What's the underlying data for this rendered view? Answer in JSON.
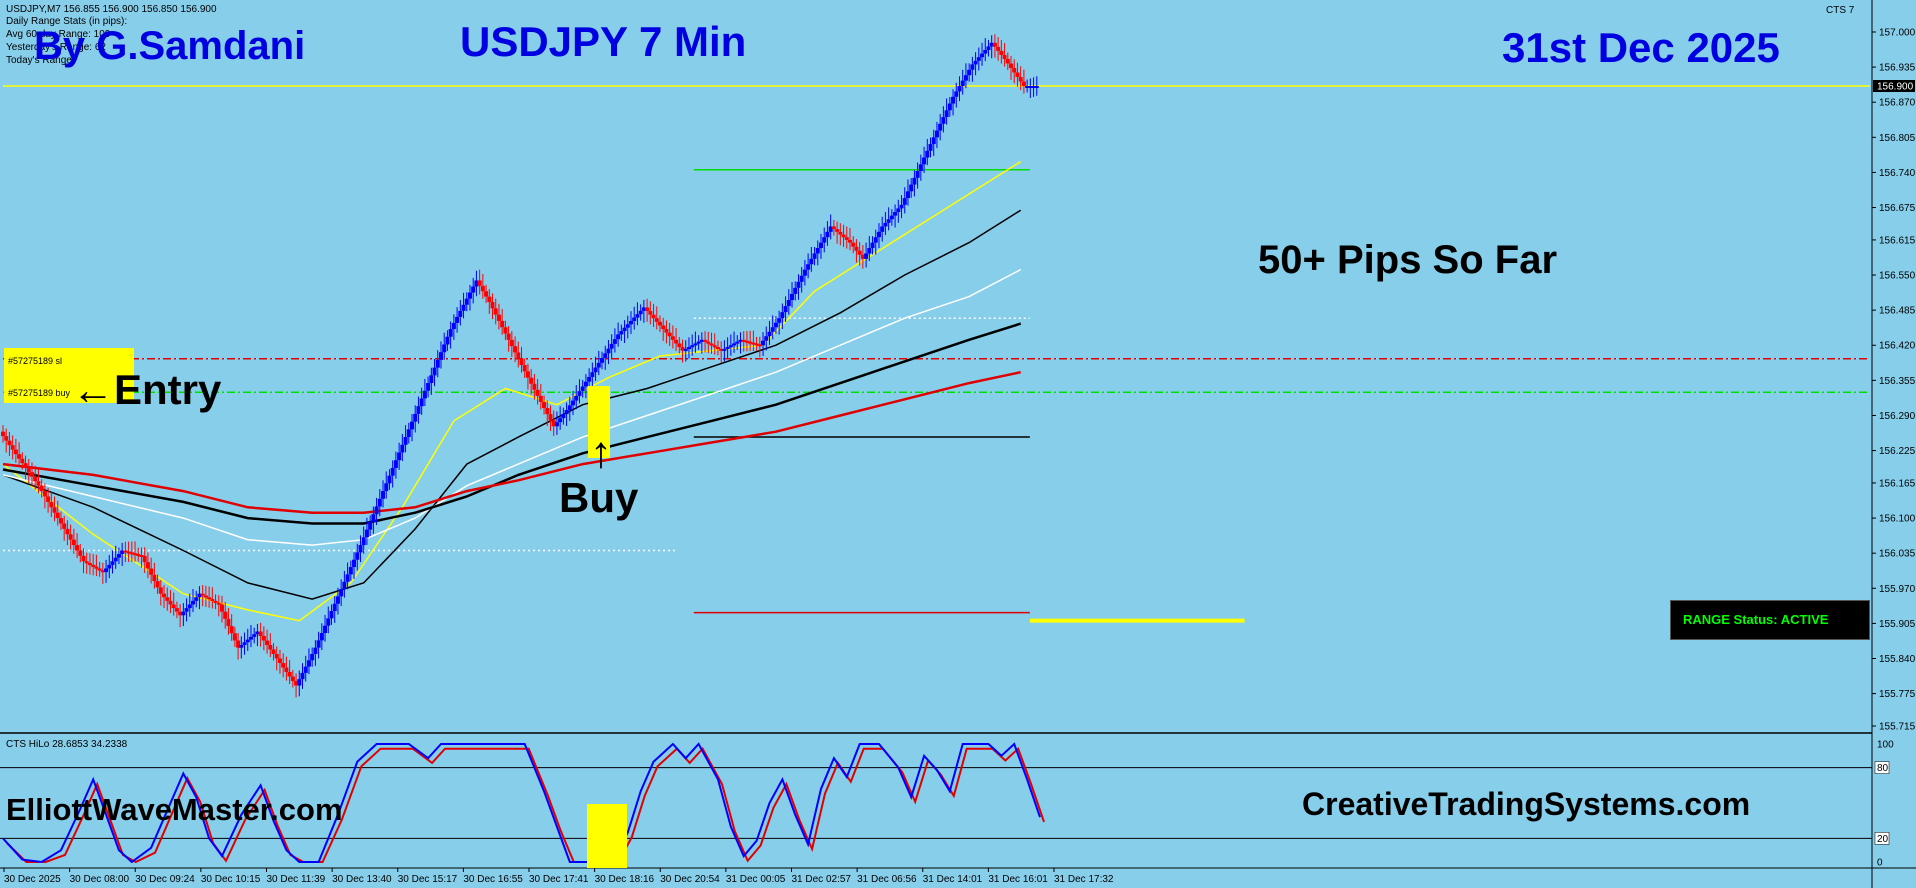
{
  "header": {
    "symbol_line": "USDJPY,M7  156.855 156.900 156.850 156.900",
    "indicator_line_1": "Daily Range Stats (in pips):",
    "indicator_line_2": "Avg 60 day Range: 109",
    "indicator_line_3": "Yesterday's Range: 62",
    "indicator_line_4": "Today's Range:",
    "corner_label": "CTS 7"
  },
  "overlays": {
    "author": "By G.Samdani",
    "title": "USDJPY 7 Min",
    "date": "31st Dec 2025",
    "pips": "50+ Pips So Far",
    "entry": "←Entry",
    "buy": "Buy",
    "buy_arrow": "↑",
    "left_site": "ElliottWaveMaster.com",
    "right_site": "CreativeTradingSystems.com",
    "status": "RANGE Status: ACTIVE",
    "order_sl": "#57275189 sl",
    "order_buy": "#57275189 buy"
  },
  "colors": {
    "background": "#87CEEB",
    "bull": "#0000FF",
    "bear": "#FF0000",
    "ma_yellow": "#FFFF00",
    "ma_white": "#FFFFFF",
    "ma_black": "#000000",
    "ma_red": "#E00000",
    "level_green": "#00DD00",
    "level_red": "#FF0000",
    "status_bg": "#000000",
    "status_text": "#00FF00",
    "highlight": "#FFFF00"
  },
  "chart_data": {
    "type": "candlestick",
    "y_axis": {
      "min": 155.715,
      "max": 157.0,
      "ticks": [
        "157.000",
        "156.935",
        "156.870",
        "156.805",
        "156.740",
        "156.675",
        "156.615",
        "156.550",
        "156.485",
        "156.420",
        "156.355",
        "156.290",
        "156.225",
        "156.165",
        "156.100",
        "156.035",
        "155.970",
        "155.905",
        "155.840",
        "155.775",
        "155.715"
      ],
      "current_price": "156.900"
    },
    "x_axis": {
      "ticks": [
        "30 Dec 2025",
        "30 Dec 08:00",
        "30 Dec 09:24",
        "30 Dec 10:15",
        "30 Dec 11:39",
        "30 Dec 13:40",
        "30 Dec 15:17",
        "30 Dec 16:55",
        "30 Dec 17:41",
        "30 Dec 18:16",
        "30 Dec 20:54",
        "31 Dec 00:05",
        "31 Dec 02:57",
        "31 Dec 06:56",
        "31 Dec 14:01",
        "31 Dec 16:01",
        "31 Dec 17:32"
      ]
    },
    "price_path": [
      [
        0,
        156.26
      ],
      [
        6,
        156.16
      ],
      [
        10,
        156.08
      ],
      [
        13,
        156.02
      ],
      [
        16,
        156.0
      ],
      [
        19,
        156.04
      ],
      [
        22,
        156.03
      ],
      [
        25,
        155.96
      ],
      [
        28,
        155.92
      ],
      [
        31,
        155.96
      ],
      [
        34,
        155.94
      ],
      [
        37,
        155.86
      ],
      [
        40,
        155.89
      ],
      [
        43,
        155.84
      ],
      [
        46,
        155.79
      ],
      [
        49,
        155.86
      ],
      [
        56,
        156.05
      ],
      [
        63,
        156.25
      ],
      [
        70,
        156.45
      ],
      [
        74,
        156.54
      ],
      [
        76,
        156.5
      ],
      [
        82,
        156.36
      ],
      [
        86,
        156.27
      ],
      [
        88,
        156.3
      ],
      [
        92,
        156.37
      ],
      [
        96,
        156.44
      ],
      [
        100,
        156.49
      ],
      [
        103,
        156.45
      ],
      [
        106,
        156.41
      ],
      [
        109,
        156.43
      ],
      [
        112,
        156.41
      ],
      [
        115,
        156.43
      ],
      [
        118,
        156.42
      ],
      [
        121,
        156.47
      ],
      [
        125,
        156.56
      ],
      [
        129,
        156.64
      ],
      [
        132,
        156.61
      ],
      [
        134,
        156.58
      ],
      [
        137,
        156.64
      ],
      [
        140,
        156.68
      ],
      [
        144,
        156.78
      ],
      [
        148,
        156.88
      ],
      [
        151,
        156.94
      ],
      [
        154,
        156.98
      ],
      [
        156,
        156.95
      ],
      [
        159,
        156.9
      ]
    ],
    "series": [
      {
        "name": "",
        "color": "yellow",
        "width": 1.5,
        "points": [
          [
            0,
            156.2
          ],
          [
            14,
            156.07
          ],
          [
            28,
            155.96
          ],
          [
            38,
            155.93
          ],
          [
            46,
            155.91
          ],
          [
            54,
            155.98
          ],
          [
            62,
            156.12
          ],
          [
            70,
            156.28
          ],
          [
            78,
            156.34
          ],
          [
            86,
            156.31
          ],
          [
            94,
            156.36
          ],
          [
            102,
            156.4
          ],
          [
            110,
            156.41
          ],
          [
            118,
            156.42
          ],
          [
            126,
            156.52
          ],
          [
            134,
            156.58
          ],
          [
            142,
            156.64
          ],
          [
            150,
            156.7
          ],
          [
            158,
            156.76
          ]
        ]
      },
      {
        "name": "",
        "color": "black",
        "width": 1.5,
        "points": [
          [
            0,
            156.18
          ],
          [
            14,
            156.12
          ],
          [
            28,
            156.04
          ],
          [
            38,
            155.98
          ],
          [
            48,
            155.95
          ],
          [
            56,
            155.98
          ],
          [
            64,
            156.08
          ],
          [
            72,
            156.2
          ],
          [
            80,
            156.25
          ],
          [
            90,
            156.31
          ],
          [
            100,
            156.34
          ],
          [
            110,
            156.38
          ],
          [
            120,
            156.42
          ],
          [
            130,
            156.48
          ],
          [
            140,
            156.55
          ],
          [
            150,
            156.61
          ],
          [
            158,
            156.67
          ]
        ]
      },
      {
        "name": "",
        "color": "white",
        "width": 1.5,
        "points": [
          [
            0,
            156.18
          ],
          [
            14,
            156.14
          ],
          [
            28,
            156.1
          ],
          [
            38,
            156.06
          ],
          [
            48,
            156.05
          ],
          [
            56,
            156.06
          ],
          [
            64,
            156.1
          ],
          [
            72,
            156.16
          ],
          [
            80,
            156.2
          ],
          [
            90,
            156.25
          ],
          [
            100,
            156.29
          ],
          [
            110,
            156.33
          ],
          [
            120,
            156.37
          ],
          [
            130,
            156.42
          ],
          [
            140,
            156.47
          ],
          [
            150,
            156.51
          ],
          [
            158,
            156.56
          ]
        ]
      },
      {
        "name": "",
        "color": "black",
        "width": 2.5,
        "points": [
          [
            0,
            156.19
          ],
          [
            14,
            156.16
          ],
          [
            28,
            156.13
          ],
          [
            38,
            156.1
          ],
          [
            48,
            156.09
          ],
          [
            56,
            156.09
          ],
          [
            64,
            156.11
          ],
          [
            72,
            156.14
          ],
          [
            80,
            156.18
          ],
          [
            90,
            156.22
          ],
          [
            100,
            156.25
          ],
          [
            110,
            156.28
          ],
          [
            120,
            156.31
          ],
          [
            130,
            156.35
          ],
          [
            140,
            156.39
          ],
          [
            150,
            156.43
          ],
          [
            158,
            156.46
          ]
        ]
      },
      {
        "name": "",
        "color": "red",
        "width": 2.5,
        "points": [
          [
            0,
            156.2
          ],
          [
            14,
            156.18
          ],
          [
            28,
            156.15
          ],
          [
            38,
            156.12
          ],
          [
            48,
            156.11
          ],
          [
            56,
            156.11
          ],
          [
            64,
            156.12
          ],
          [
            72,
            156.15
          ],
          [
            80,
            156.17
          ],
          [
            90,
            156.2
          ],
          [
            100,
            156.22
          ],
          [
            110,
            156.24
          ],
          [
            120,
            156.26
          ],
          [
            130,
            156.29
          ],
          [
            140,
            156.32
          ],
          [
            150,
            156.35
          ],
          [
            158,
            156.37
          ]
        ]
      }
    ],
    "levels": [
      {
        "price": 156.9,
        "color": "yellow",
        "style": "solid",
        "from": 0,
        "to": 1
      },
      {
        "price": 156.745,
        "color": "green",
        "style": "solid",
        "from": 0.37,
        "to": 0.55
      },
      {
        "price": 156.47,
        "color": "white",
        "style": "dotted",
        "from": 0.37,
        "to": 0.55
      },
      {
        "price": 156.395,
        "color": "red",
        "style": "dashdot",
        "from": 0,
        "to": 1
      },
      {
        "price": 156.333,
        "color": "green",
        "style": "dashdot",
        "from": 0,
        "to": 1
      },
      {
        "price": 156.25,
        "color": "black",
        "style": "solid",
        "from": 0.37,
        "to": 0.55
      },
      {
        "price": 156.04,
        "color": "white",
        "style": "dotted",
        "from": 0,
        "to": 0.36
      },
      {
        "price": 155.925,
        "color": "red",
        "style": "solid",
        "from": 0.37,
        "to": 0.55
      },
      {
        "price": 155.91,
        "color": "yellow",
        "style": "solid",
        "from": 0.55,
        "to": 0.665
      }
    ],
    "oscillator": {
      "label": "CTS HiLo 28.6853 34.2338",
      "ticks": [
        "100",
        "80",
        "20",
        "0"
      ],
      "min": 0,
      "max": 100,
      "points": [
        [
          0,
          20
        ],
        [
          3,
          2
        ],
        [
          6,
          0
        ],
        [
          9,
          10
        ],
        [
          12,
          45
        ],
        [
          14,
          70
        ],
        [
          16,
          40
        ],
        [
          18,
          10
        ],
        [
          20,
          0
        ],
        [
          23,
          12
        ],
        [
          26,
          50
        ],
        [
          28,
          75
        ],
        [
          30,
          55
        ],
        [
          32,
          20
        ],
        [
          34,
          5
        ],
        [
          37,
          40
        ],
        [
          40,
          65
        ],
        [
          42,
          35
        ],
        [
          44,
          10
        ],
        [
          46,
          0
        ],
        [
          49,
          0
        ],
        [
          52,
          40
        ],
        [
          55,
          85
        ],
        [
          58,
          100
        ],
        [
          63,
          100
        ],
        [
          66,
          88
        ],
        [
          68,
          100
        ],
        [
          72,
          100
        ],
        [
          78,
          100
        ],
        [
          81,
          100
        ],
        [
          84,
          60
        ],
        [
          86,
          30
        ],
        [
          88,
          0
        ],
        [
          92,
          0
        ],
        [
          95,
          5
        ],
        [
          97,
          25
        ],
        [
          99,
          60
        ],
        [
          101,
          85
        ],
        [
          104,
          100
        ],
        [
          106,
          88
        ],
        [
          108,
          100
        ],
        [
          111,
          70
        ],
        [
          113,
          30
        ],
        [
          115,
          5
        ],
        [
          117,
          18
        ],
        [
          119,
          50
        ],
        [
          121,
          70
        ],
        [
          123,
          40
        ],
        [
          125,
          15
        ],
        [
          127,
          62
        ],
        [
          129,
          88
        ],
        [
          131,
          72
        ],
        [
          133,
          100
        ],
        [
          136,
          100
        ],
        [
          139,
          80
        ],
        [
          141,
          55
        ],
        [
          143,
          90
        ],
        [
          145,
          78
        ],
        [
          147,
          60
        ],
        [
          149,
          100
        ],
        [
          153,
          100
        ],
        [
          155,
          90
        ],
        [
          157,
          100
        ],
        [
          159,
          70
        ],
        [
          161,
          38
        ]
      ]
    }
  }
}
